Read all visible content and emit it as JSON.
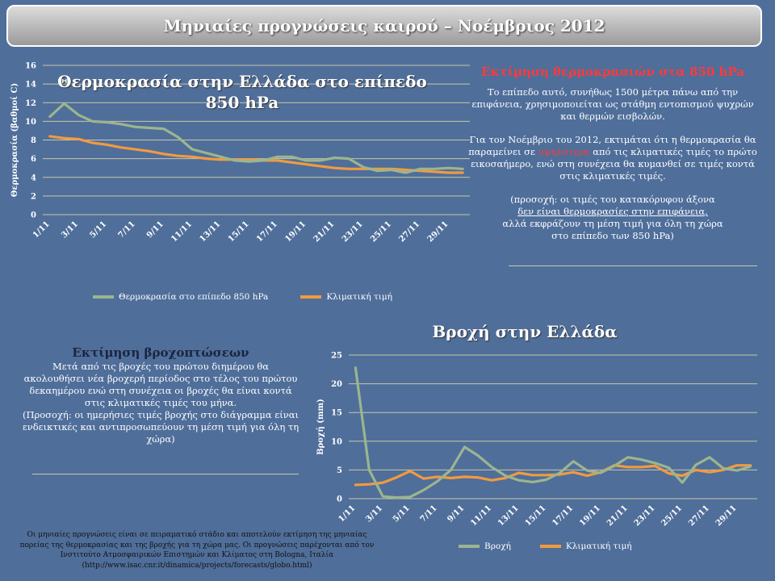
{
  "page_title": "Μηνιαίες προγνώσεις καιρού – Νοέμβριος 2012",
  "temp_panel": {
    "heading": "Εκτίμηση θερμοκρασιών στα 850 hPa",
    "para1": "Το επίπεδο αυτό, συνήθως 1500 μέτρα πάνω από την επιφάνεια, χρησιμοποιείται ως στάθμη εντοπισμού ψυχρών και θερμών εισβολών.",
    "para2_a": "Για τον Νοέμβριο του 2012, εκτιμάται ότι η θερμοκρασία θα παραμείνει σε ",
    "para2_red": "υψηλότερα",
    "para2_b": " από τις κλιματικές τιμές το πρώτο εικοσαήμερο, ενώ στη συνέχεια θα κυμανθεί σε τιμές κοντά στις κλιματικές τιμές.",
    "para3_a": "(προσοχή: οι τιμές του κατακόρυφου άξονα",
    "para3_u": "δεν είναι θερμοκρασίες στην επιφάνεια,",
    "para3_b": "αλλά εκφράζουν τη μέση τιμή για όλη τη χώρα",
    "para3_c": "στο επίπεδο των 850 hPa)"
  },
  "rain_panel": {
    "heading": "Εκτίμηση βροχοπτώσεων",
    "body": "Μετά από τις βροχές του πρώτου διημέρου θα ακολουθήσει νέα βροχερή περίοδος στο τέλος του πρώτου δεκαημέρου ενώ στη συνέχεια οι βροχές θα είναι κοντά στις κλιματικές τιμές του μήνα.",
    "note": "(Προσοχή: οι ημερήσιες τιμές βροχής στο διάγραμμα είναι ενδεικτικές και αντιπροσωπεύουν τη μέση τιμή για όλη τη χώρα)"
  },
  "footer": "Οι μηνιαίες προγνώσεις είναι σε πειραματικό στάδιο και αποτελούν εκτίμηση της μηνιαίας πορείας της θερμοκρασίας και της βροχής για τη χώρα μας. Οι προγνώσεις παρέχονται από τον Ινστιτούτο Ατμοσφαιρικών Επιστημών και Κλίματος στη Bologna, Ιταλία (http://www.isac.cnr.it/dinamica/projects/forecasts/globo.html)",
  "colors": {
    "series_main": "#9bb58f",
    "series_clim": "#f29a3f",
    "grid": "#c8c8a8"
  },
  "chart_data": [
    {
      "type": "line",
      "title": "Θερμοκρασία στην Ελλάδα στο επίπεδο 850 hPa",
      "xlabel": "",
      "ylabel": "Θερμοκρασία (βαθμοί C)",
      "ylim": [
        0,
        16
      ],
      "yticks": [
        0,
        2,
        4,
        6,
        8,
        10,
        12,
        14,
        16
      ],
      "x": [
        1,
        2,
        3,
        4,
        5,
        6,
        7,
        8,
        9,
        10,
        11,
        12,
        13,
        14,
        15,
        16,
        17,
        18,
        19,
        20,
        21,
        22,
        23,
        24,
        25,
        26,
        27,
        28,
        29,
        30
      ],
      "xtick_labels": [
        "1/11",
        "3/11",
        "5/11",
        "7/11",
        "9/11",
        "11/11",
        "13/11",
        "15/11",
        "17/11",
        "19/11",
        "21/11",
        "23/11",
        "25/11",
        "27/11",
        "29/11"
      ],
      "series": [
        {
          "name": "Θερμοκρασία στο επίπεδο 850 hPa",
          "values": [
            10.5,
            11.9,
            10.7,
            10.0,
            9.9,
            9.7,
            9.4,
            9.3,
            9.2,
            8.3,
            7.0,
            6.6,
            6.2,
            5.8,
            5.7,
            5.8,
            6.2,
            6.2,
            5.8,
            5.8,
            6.1,
            6.0,
            5.1,
            4.7,
            4.8,
            4.5,
            4.9,
            4.9,
            5.0,
            4.9
          ]
        },
        {
          "name": "Κλιματική τιμή",
          "values": [
            8.4,
            8.2,
            8.1,
            7.7,
            7.5,
            7.2,
            7.0,
            6.8,
            6.5,
            6.3,
            6.2,
            6.0,
            5.9,
            5.9,
            5.9,
            5.8,
            5.8,
            5.6,
            5.4,
            5.2,
            5.0,
            4.9,
            4.9,
            4.9,
            4.9,
            4.8,
            4.7,
            4.6,
            4.5,
            4.5
          ]
        }
      ]
    },
    {
      "type": "line",
      "title": "Βροχή στην Ελλάδα",
      "xlabel": "",
      "ylabel": "Βροχή (mm)",
      "ylim": [
        0,
        25
      ],
      "yticks": [
        0,
        5,
        10,
        15,
        20,
        25
      ],
      "x": [
        1,
        2,
        3,
        4,
        5,
        6,
        7,
        8,
        9,
        10,
        11,
        12,
        13,
        14,
        15,
        16,
        17,
        18,
        19,
        20,
        21,
        22,
        23,
        24,
        25,
        26,
        27,
        28,
        29,
        30
      ],
      "xtick_labels": [
        "1/11",
        "3/11",
        "5/11",
        "7/11",
        "9/11",
        "11/11",
        "13/11",
        "15/11",
        "17/11",
        "19/11",
        "21/11",
        "23/11",
        "25/11",
        "27/11",
        "29/11"
      ],
      "series": [
        {
          "name": "Βροχή",
          "values": [
            22.8,
            5.0,
            0.4,
            0.2,
            0.3,
            1.5,
            3.0,
            5.0,
            9.0,
            7.5,
            5.5,
            4.0,
            3.2,
            2.9,
            3.3,
            4.5,
            6.5,
            4.9,
            4.5,
            5.7,
            7.2,
            6.8,
            6.2,
            5.4,
            2.8,
            5.9,
            7.2,
            5.3,
            4.9,
            5.6
          ]
        },
        {
          "name": "Κλιματική τιμή",
          "values": [
            2.4,
            2.5,
            2.8,
            3.7,
            4.8,
            3.5,
            3.8,
            3.6,
            3.8,
            3.7,
            3.2,
            3.6,
            4.5,
            4.1,
            4.1,
            4.2,
            4.6,
            4.0,
            4.6,
            5.8,
            5.5,
            5.5,
            5.7,
            4.4,
            4.0,
            5.0,
            4.6,
            5.0,
            5.8,
            5.8
          ]
        }
      ]
    }
  ]
}
